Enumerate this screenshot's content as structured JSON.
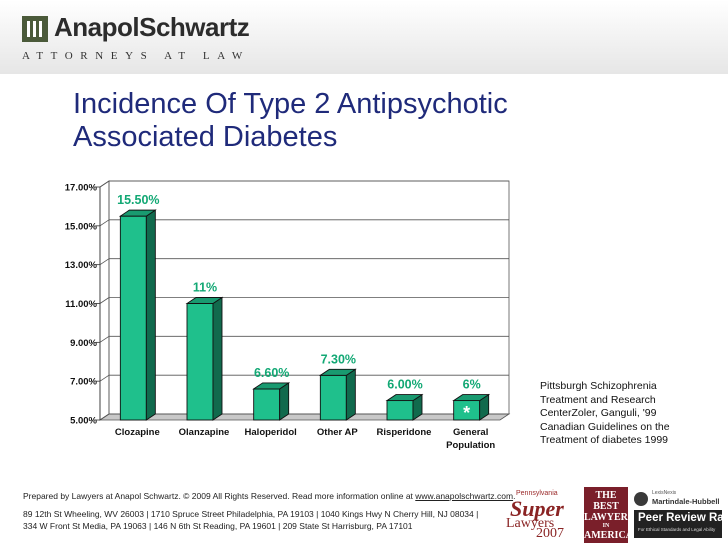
{
  "header": {
    "brand_name": "AnapolSchwartz",
    "brand_tagline": "ATTORNEYS AT LAW"
  },
  "title_lines": [
    "Incidence Of Type 2 Antipsychotic",
    "Associated Diabetes"
  ],
  "chart_data": {
    "type": "bar",
    "title": "",
    "xlabel": "",
    "ylabel": "",
    "ylim": [
      5,
      17
    ],
    "y_ticks": [
      "5.00%",
      "7.00%",
      "9.00%",
      "11.00%",
      "13.00%",
      "15.00%",
      "17.00%"
    ],
    "y_tick_values": [
      5,
      7,
      9,
      11,
      13,
      15,
      17
    ],
    "grid": true,
    "categories": [
      "Clozapine",
      "Olanzapine",
      "Haloperidol",
      "Other AP",
      "Risperidone",
      "General Population"
    ],
    "category_lines": [
      [
        "Clozapine"
      ],
      [
        "Olanzapine"
      ],
      [
        "Haloperidol"
      ],
      [
        "Other AP"
      ],
      [
        "Risperidone"
      ],
      [
        "General",
        "Population"
      ]
    ],
    "values": [
      15.5,
      11,
      6.6,
      7.3,
      6.0,
      6.0
    ],
    "data_labels": [
      "15.50%",
      "11%",
      "6.60%",
      "7.30%",
      "6.00%",
      "6%"
    ],
    "annotations": [
      {
        "category": "General Population",
        "text": "*"
      }
    ],
    "bar_color": "#1fc08c",
    "label_color": "#12a874"
  },
  "source_note": [
    "Pittsburgh Schizophrenia",
    "Treatment and Research",
    "CenterZoler, Ganguli, '99",
    "Canadian Guidelines on the",
    "Treatment of diabetes 1999"
  ],
  "footer": {
    "line1": "Prepared by Lawyers at Anapol Schwartz. © 2009 All Rights Reserved. Read more information online at ",
    "link": "www.anapolschwartz.com",
    "line1_end": ".",
    "line2": "89 12th St Wheeling, WV 26003 | 1710 Spruce Street Philadelphia, PA 19103 | 1040 Kings Hwy N Cherry Hill, NJ 08034 |",
    "line3": "334 W Front St Media, PA 19063 | 146 N 6th St Reading, PA 19601 | 209 State St Harrisburg, PA 17101"
  },
  "badges": {
    "super_small": "Pennsylvania",
    "super_big": "Super",
    "super_mid": "Lawyers",
    "super_year": "2007",
    "best_lines": [
      "THE BEST",
      "LAWYERS",
      "IN",
      "AMERICA"
    ],
    "mh_l1": "LexisNexis",
    "mh_l2": "Martindale-Hubbell",
    "mh_l3": "Peer Review Rated",
    "mh_l4": "For Ethical Standards and Legal Ability"
  }
}
